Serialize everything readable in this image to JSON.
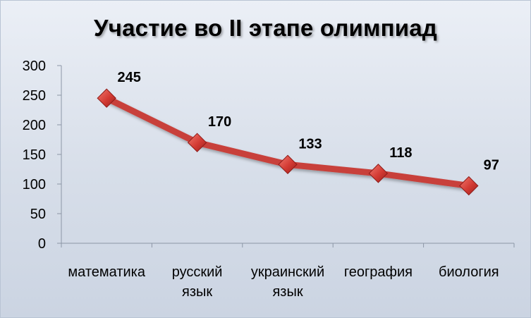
{
  "colors": {
    "line": "#c8413b",
    "marker": "#d23a33",
    "axis": "#8c96a6"
  },
  "chart_data": {
    "type": "line",
    "title": "Участие во II этапе олимпиад",
    "categories": [
      [
        "математика"
      ],
      [
        "русский",
        "язык"
      ],
      [
        "украинский",
        "язык"
      ],
      [
        "география"
      ],
      [
        "биология"
      ]
    ],
    "values": [
      245,
      170,
      133,
      118,
      97
    ],
    "ylim": [
      0,
      300
    ],
    "yticks": [
      "0",
      "50",
      "100",
      "150",
      "200",
      "250",
      "300"
    ],
    "grid": false,
    "legend": false,
    "data_labels": [
      "245",
      "170",
      "133",
      "118",
      "97"
    ]
  }
}
